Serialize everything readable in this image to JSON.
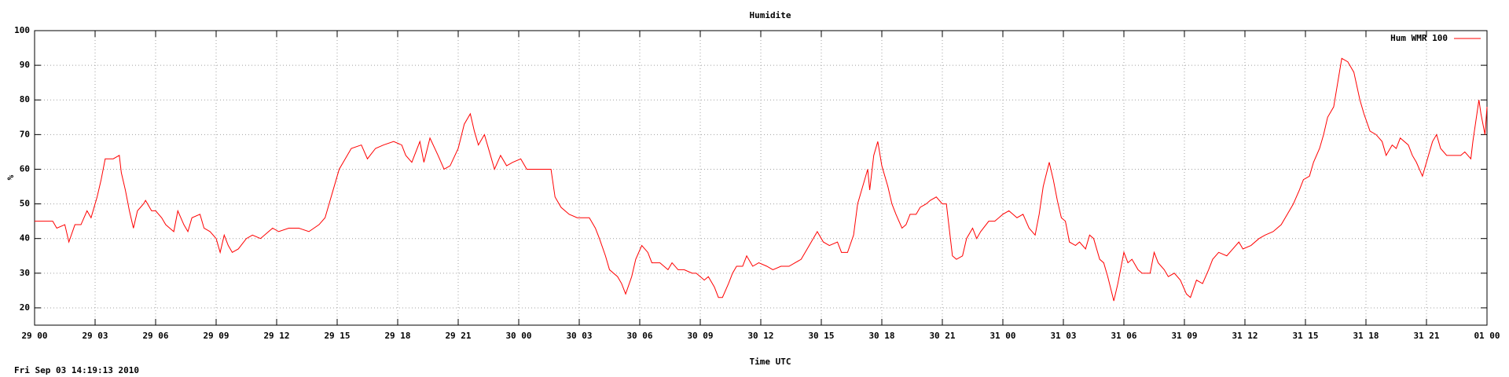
{
  "chart_data": {
    "type": "line",
    "title": "Humidite",
    "xlabel": "Time UTC",
    "ylabel": "%",
    "footer": "Fri Sep 03 14:19:13 2010",
    "legend": "upper right",
    "grid": true,
    "xlim": [
      0,
      72
    ],
    "ylim": [
      15,
      100
    ],
    "xticks": [
      {
        "value": 0,
        "label": "29 00"
      },
      {
        "value": 3,
        "label": "29 03"
      },
      {
        "value": 6,
        "label": "29 06"
      },
      {
        "value": 9,
        "label": "29 09"
      },
      {
        "value": 12,
        "label": "29 12"
      },
      {
        "value": 15,
        "label": "29 15"
      },
      {
        "value": 18,
        "label": "29 18"
      },
      {
        "value": 21,
        "label": "29 21"
      },
      {
        "value": 24,
        "label": "30 00"
      },
      {
        "value": 27,
        "label": "30 03"
      },
      {
        "value": 30,
        "label": "30 06"
      },
      {
        "value": 33,
        "label": "30 09"
      },
      {
        "value": 36,
        "label": "30 12"
      },
      {
        "value": 39,
        "label": "30 15"
      },
      {
        "value": 42,
        "label": "30 18"
      },
      {
        "value": 45,
        "label": "30 21"
      },
      {
        "value": 48,
        "label": "31 00"
      },
      {
        "value": 51,
        "label": "31 03"
      },
      {
        "value": 54,
        "label": "31 06"
      },
      {
        "value": 57,
        "label": "31 09"
      },
      {
        "value": 60,
        "label": "31 12"
      },
      {
        "value": 63,
        "label": "31 15"
      },
      {
        "value": 66,
        "label": "31 18"
      },
      {
        "value": 69,
        "label": "31 21"
      },
      {
        "value": 72,
        "label": "01 00"
      }
    ],
    "yticks": [
      20,
      30,
      40,
      50,
      60,
      70,
      80,
      90,
      100
    ],
    "x": [
      0,
      0.9,
      1.1,
      1.5,
      1.7,
      2.0,
      2.3,
      2.6,
      2.8,
      3.1,
      3.3,
      3.5,
      3.9,
      4.2,
      4.3,
      4.5,
      4.7,
      4.9,
      5.1,
      5.4,
      5.5,
      5.8,
      6.0,
      6.3,
      6.5,
      6.7,
      6.9,
      7.1,
      7.4,
      7.6,
      7.8,
      8.2,
      8.4,
      8.7,
      9.0,
      9.2,
      9.4,
      9.6,
      9.8,
      10.1,
      10.5,
      10.8,
      11.2,
      11.6,
      11.8,
      12.1,
      12.6,
      13.1,
      13.6,
      14.1,
      14.4,
      14.8,
      15.1,
      15.4,
      15.7,
      16.2,
      16.5,
      16.9,
      17.3,
      17.8,
      18.2,
      18.4,
      18.7,
      19.1,
      19.3,
      19.6,
      20.0,
      20.3,
      20.6,
      21.0,
      21.3,
      21.6,
      21.8,
      22.0,
      22.3,
      22.6,
      22.8,
      23.1,
      23.4,
      23.7,
      24.1,
      24.4,
      24.8,
      25.3,
      25.6,
      25.8,
      26.1,
      26.5,
      26.9,
      27.2,
      27.5,
      27.8,
      28.0,
      28.3,
      28.5,
      28.9,
      29.1,
      29.3,
      29.6,
      29.8,
      30.1,
      30.4,
      30.6,
      31.0,
      31.4,
      31.6,
      31.9,
      32.2,
      32.6,
      32.8,
      33.2,
      33.4,
      33.7,
      33.9,
      34.1,
      34.4,
      34.6,
      34.8,
      35.1,
      35.3,
      35.6,
      35.9,
      36.3,
      36.6,
      37.0,
      37.4,
      37.7,
      38.0,
      38.3,
      38.6,
      38.8,
      39.1,
      39.4,
      39.8,
      40.0,
      40.3,
      40.6,
      40.8,
      41.1,
      41.3,
      41.4,
      41.6,
      41.8,
      42.0,
      42.3,
      42.5,
      42.7,
      43.0,
      43.2,
      43.4,
      43.7,
      43.9,
      44.2,
      44.4,
      44.7,
      45.0,
      45.2,
      45.4,
      45.5,
      45.7,
      46.0,
      46.2,
      46.5,
      46.7,
      46.9,
      47.3,
      47.6,
      48.0,
      48.3,
      48.7,
      49.0,
      49.3,
      49.6,
      49.8,
      50.0,
      50.3,
      50.5,
      50.7,
      50.9,
      51.1,
      51.3,
      51.6,
      51.8,
      52.1,
      52.3,
      52.5,
      52.8,
      53.0,
      53.2,
      53.5,
      53.7,
      54.0,
      54.2,
      54.4,
      54.7,
      54.9,
      55.3,
      55.5,
      55.7,
      56.0,
      56.2,
      56.5,
      56.8,
      57.1,
      57.3,
      57.6,
      57.9,
      58.2,
      58.4,
      58.7,
      59.1,
      59.4,
      59.7,
      59.9,
      60.3,
      60.7,
      61.0,
      61.4,
      61.8,
      62.1,
      62.4,
      62.7,
      62.9,
      63.2,
      63.4,
      63.7,
      63.9,
      64.1,
      64.4,
      64.6,
      64.8,
      65.1,
      65.4,
      65.7,
      65.9,
      66.2,
      66.5,
      66.8,
      67.0,
      67.3,
      67.5,
      67.7,
      68.1,
      68.3,
      68.5,
      68.8,
      69.0,
      69.3,
      69.5,
      69.7,
      70.0,
      70.4,
      70.7,
      70.9,
      71.2,
      71.3,
      71.6,
      71.7,
      71.9,
      72.0
    ],
    "series": [
      {
        "name": "Hum WMR 100",
        "color": "#ff0000",
        "values": [
          45,
          45,
          43,
          44,
          39,
          44,
          44,
          48,
          46,
          52,
          57,
          63,
          63,
          64,
          59,
          54,
          48,
          43,
          48,
          50,
          51,
          48,
          48,
          46,
          44,
          43,
          42,
          48,
          44,
          42,
          46,
          47,
          43,
          42,
          40,
          36,
          41,
          38,
          36,
          37,
          40,
          41,
          40,
          42,
          43,
          42,
          43,
          43,
          42,
          44,
          46,
          54,
          60,
          63,
          66,
          67,
          63,
          66,
          67,
          68,
          67,
          64,
          62,
          68,
          62,
          69,
          64,
          60,
          61,
          66,
          73,
          76,
          71,
          67,
          70,
          64,
          60,
          64,
          61,
          62,
          63,
          60,
          60,
          60,
          60,
          52,
          49,
          47,
          46,
          46,
          46,
          43,
          40,
          35,
          31,
          29,
          27,
          24,
          29,
          34,
          38,
          36,
          33,
          33,
          31,
          33,
          31,
          31,
          30,
          30,
          28,
          29,
          26,
          23,
          23,
          27,
          30,
          32,
          32,
          35,
          32,
          33,
          32,
          31,
          32,
          32,
          33,
          34,
          37,
          40,
          42,
          39,
          38,
          39,
          36,
          36,
          41,
          50,
          56,
          60,
          54,
          64,
          68,
          61,
          55,
          50,
          47,
          43,
          44,
          47,
          47,
          49,
          50,
          51,
          52,
          50,
          50,
          40,
          35,
          34,
          35,
          40,
          43,
          40,
          42,
          45,
          45,
          47,
          48,
          46,
          47,
          43,
          41,
          47,
          55,
          62,
          57,
          51,
          46,
          45,
          39,
          38,
          39,
          37,
          41,
          40,
          34,
          33,
          29,
          22,
          27,
          36,
          33,
          34,
          31,
          30,
          30,
          36,
          33,
          31,
          29,
          30,
          28,
          24,
          23,
          28,
          27,
          31,
          34,
          36,
          35,
          37,
          39,
          37,
          38,
          40,
          41,
          42,
          44,
          47,
          50,
          54,
          57,
          58,
          62,
          66,
          70,
          75,
          78,
          85,
          92,
          91,
          88,
          80,
          76,
          71,
          70,
          68,
          64,
          67,
          66,
          69,
          67,
          64,
          62,
          58,
          62,
          68,
          70,
          66,
          64,
          64,
          64,
          65,
          63,
          68,
          80,
          76,
          70,
          78
        ]
      }
    ]
  }
}
